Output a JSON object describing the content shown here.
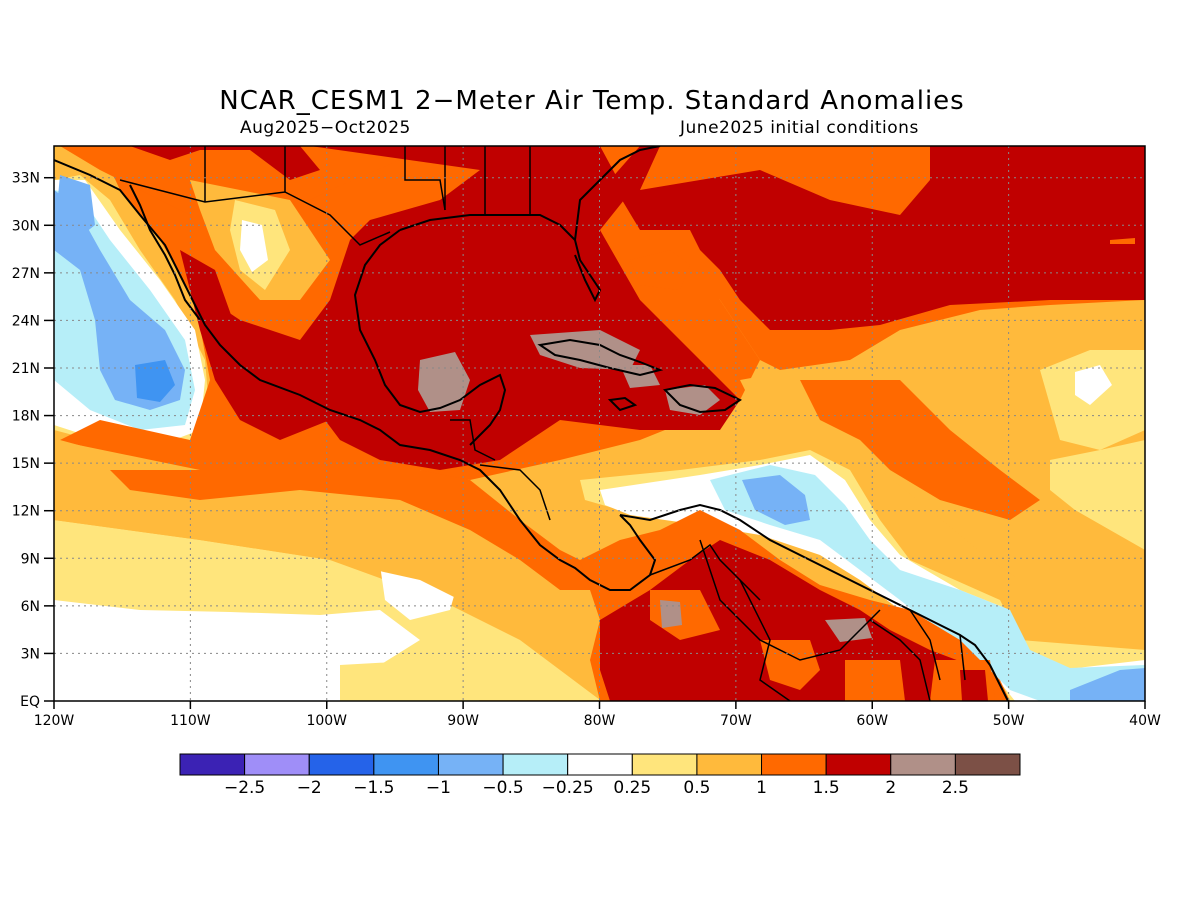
{
  "title": "NCAR_CESM1 2−Meter Air Temp. Standard Anomalies",
  "subtitle_left": "Aug2025−Oct2025",
  "subtitle_right": "June2025 initial conditions",
  "map": {
    "lon_range": [
      -120,
      -40
    ],
    "lat_range": [
      0,
      35
    ],
    "lat_labels": [
      "EQ",
      "3N",
      "6N",
      "9N",
      "12N",
      "15N",
      "18N",
      "21N",
      "24N",
      "27N",
      "30N",
      "33N"
    ],
    "lon_labels": [
      "120W",
      "110W",
      "100W",
      "90W",
      "80W",
      "70W",
      "60W",
      "50W",
      "40W"
    ],
    "grid": "dotted"
  },
  "colorbar": {
    "labels": [
      "−2.5",
      "−2",
      "−1.5",
      "−1",
      "−0.5",
      "−0.25",
      "0.25",
      "0.5",
      "1",
      "1.5",
      "2",
      "2.5"
    ],
    "colors": [
      "#3b22b4",
      "#9f8ef8",
      "#2563e9",
      "#3f94f2",
      "#76b2f6",
      "#b6eef8",
      "#ffffff",
      "#ffe57c",
      "#ffba3c",
      "#ff6900",
      "#c00000",
      "#b09088",
      "#7c5046"
    ]
  }
}
